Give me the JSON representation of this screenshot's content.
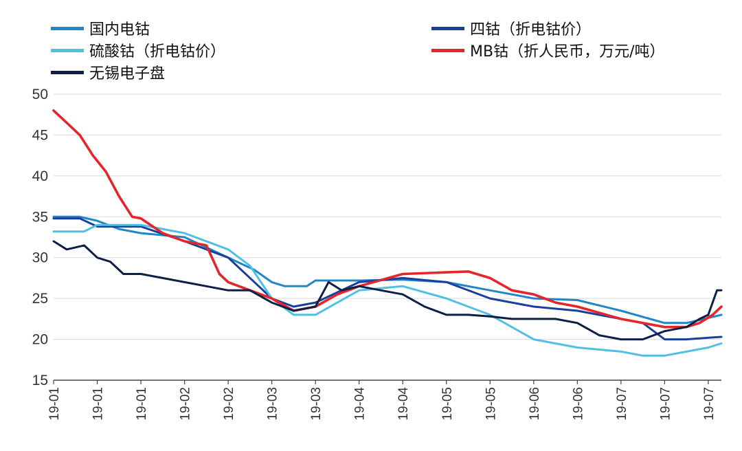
{
  "chart_data": {
    "type": "line",
    "title": "",
    "xlabel": "",
    "ylabel": "",
    "ylim": [
      15,
      50
    ],
    "yticks": [
      15,
      20,
      25,
      30,
      35,
      40,
      45,
      50
    ],
    "xtick_labels": [
      "19-01",
      "19-01",
      "19-01",
      "19-02",
      "19-02",
      "19-03",
      "19-03",
      "19-04",
      "19-04",
      "19-05",
      "19-05",
      "19-06",
      "19-06",
      "19-07",
      "19-07",
      "19-07"
    ],
    "grid": "horizontal",
    "legend_position": "top",
    "series": [
      {
        "name": "国内电钴",
        "color": "#1f86c8",
        "x": [
          0,
          0.6,
          1,
          1.5,
          2,
          3,
          4,
          4.6,
          5,
          5.3,
          5.8,
          6,
          7,
          8,
          9,
          10,
          11,
          12,
          13,
          14,
          14.5,
          14.9,
          15.3
        ],
        "values": [
          35,
          35,
          34.5,
          33.5,
          33,
          32.5,
          30,
          28.5,
          27,
          26.5,
          26.5,
          27.2,
          27.2,
          27.3,
          27,
          26,
          25,
          24.8,
          23.5,
          22,
          22,
          22.5,
          23
        ]
      },
      {
        "name": "四钴（折电钴价）",
        "color": "#1a3f9a",
        "x": [
          0,
          0.6,
          1,
          2,
          3,
          4,
          5,
          5.5,
          6,
          7,
          8,
          9,
          10,
          11,
          12,
          13,
          13.5,
          14,
          14.5,
          15,
          15.3
        ],
        "values": [
          34.8,
          34.8,
          33.8,
          33.8,
          32,
          30,
          25,
          24,
          24.5,
          27,
          27.5,
          27,
          25,
          24,
          23.5,
          22.5,
          22,
          20,
          20,
          20.2,
          20.3
        ]
      },
      {
        "name": "硫酸钴（折电钴价）",
        "color": "#4fc0e2",
        "x": [
          0,
          0.7,
          1,
          2,
          3,
          4,
          4.5,
          5,
          5.5,
          6,
          7,
          8,
          9,
          10,
          11,
          12,
          13,
          13.5,
          14,
          14.5,
          15,
          15.3
        ],
        "values": [
          33.2,
          33.2,
          34,
          34,
          33,
          31,
          29,
          25,
          23,
          23,
          26,
          26.5,
          25,
          23,
          20,
          19,
          18.5,
          18,
          18,
          18.5,
          19,
          19.5
        ]
      },
      {
        "name": "MB钴（折人民币，万元/吨）",
        "color": "#e3262c",
        "x": [
          0,
          0.3,
          0.6,
          0.9,
          1.2,
          1.5,
          1.8,
          2,
          2.5,
          3,
          3.5,
          3.8,
          4,
          4.5,
          5,
          5.5,
          6,
          6.5,
          7,
          8,
          9,
          9.5,
          10,
          10.5,
          11,
          11.5,
          12,
          13,
          14,
          14.5,
          14.8,
          15.1,
          15.3
        ],
        "values": [
          48,
          46.5,
          45,
          42.5,
          40.5,
          37.5,
          35,
          34.8,
          33,
          32,
          31.5,
          28,
          27,
          26,
          25,
          23.5,
          24,
          25.5,
          26.5,
          28,
          28.2,
          28.3,
          27.5,
          26,
          25.5,
          24.5,
          24,
          22.5,
          21.5,
          21.5,
          22,
          23,
          24
        ]
      },
      {
        "name": "无锡电子盘",
        "color": "#0d1f44",
        "x": [
          0,
          0.3,
          0.7,
          1,
          1.3,
          1.6,
          2,
          2.5,
          3,
          3.5,
          4,
          4.5,
          5,
          5.5,
          6,
          6.3,
          6.6,
          7,
          7.5,
          8,
          8.5,
          9,
          9.5,
          10,
          10.5,
          11,
          11.5,
          12,
          12.5,
          13,
          13.5,
          14,
          14.5,
          14.8,
          15,
          15.2,
          15.3
        ],
        "values": [
          32,
          31,
          31.5,
          30,
          29.5,
          28,
          28,
          27.5,
          27,
          26.5,
          26,
          26,
          24.5,
          23.5,
          24,
          27,
          26,
          26.5,
          26,
          25.5,
          24,
          23,
          23,
          22.8,
          22.5,
          22.5,
          22.5,
          22,
          20.5,
          20,
          20,
          21,
          21.5,
          22.5,
          23,
          26,
          26
        ]
      }
    ]
  }
}
